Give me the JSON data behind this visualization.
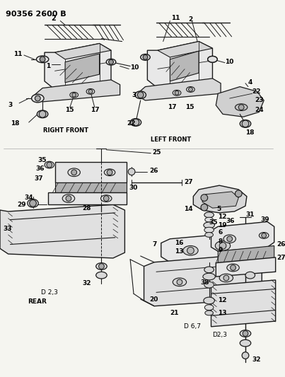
{
  "title": "90356 2600 B",
  "bg_color": "#f5f5f0",
  "line_color": "#1a1a1a",
  "fig_width": 4.03,
  "fig_height": 5.33,
  "dpi": 100,
  "sections": {
    "right_front_label": "RIGHT FRONT",
    "left_front_label": "LEFT FRONT",
    "rear_label": "REAR",
    "d23_label": "D 2,3",
    "d67_label": "D 6,7",
    "d23b_label": "D2,3"
  }
}
